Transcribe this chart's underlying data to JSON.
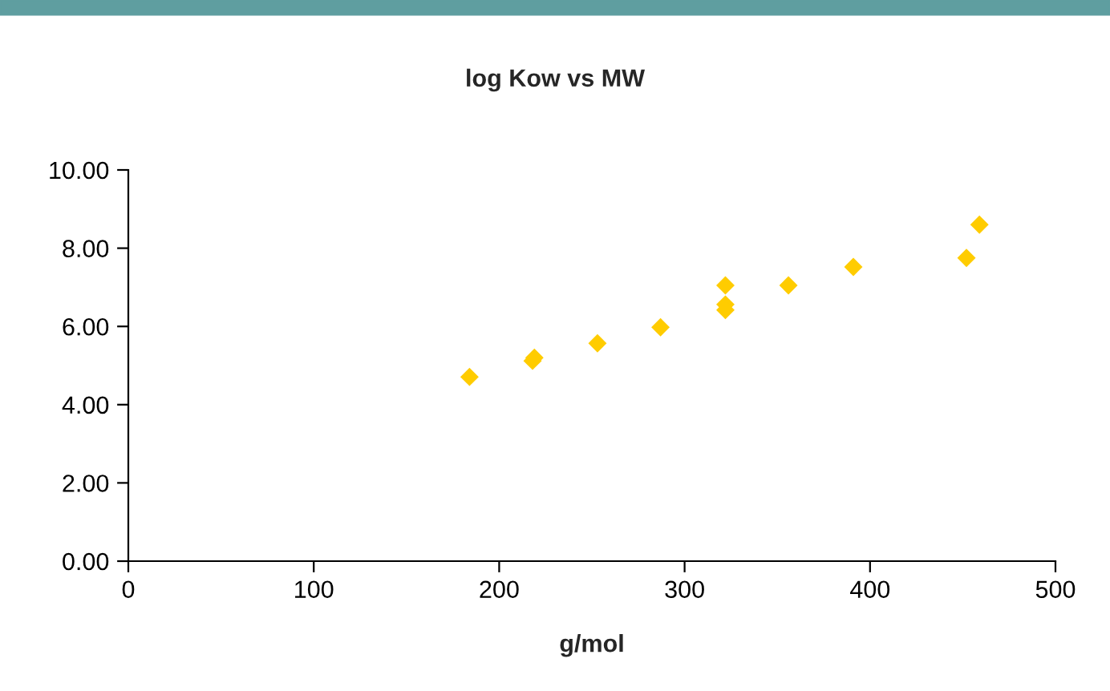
{
  "chart_data": {
    "type": "scatter",
    "title": "log Kow vs MW",
    "xlabel": "g/mol",
    "x": [
      184,
      218,
      219,
      253,
      287,
      322,
      322,
      322,
      356,
      391,
      452,
      459
    ],
    "series": [
      {
        "color": "#ffcc00",
        "values": [
          4.71,
          5.12,
          5.2,
          5.57,
          5.98,
          7.05,
          6.56,
          6.42,
          7.05,
          7.52,
          7.75,
          8.6
        ]
      }
    ],
    "marker": "diamond",
    "grid": false,
    "legend": false,
    "xlim": [
      0,
      500
    ],
    "xticks": [
      0,
      100,
      200,
      300,
      400,
      500
    ],
    "ylim": [
      0,
      10
    ],
    "yticks": [
      {
        "value": 0,
        "label": "0.00"
      },
      {
        "value": 2,
        "label": "2.00"
      },
      {
        "value": 4,
        "label": "4.00"
      },
      {
        "value": 6,
        "label": "6.00"
      },
      {
        "value": 8,
        "label": "8.00"
      },
      {
        "value": 10,
        "label": "10.00"
      }
    ]
  }
}
